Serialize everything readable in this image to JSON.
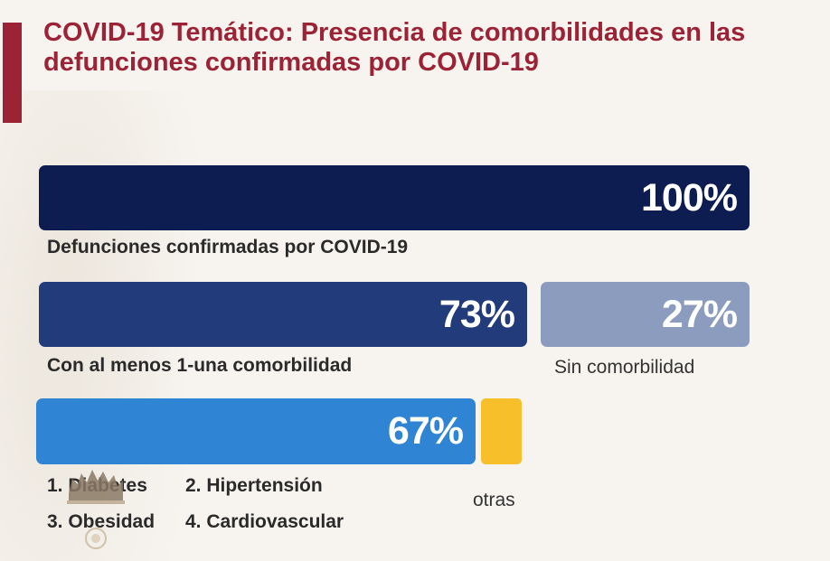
{
  "title": "COVID-19 Temático: Presencia de comorbilidades en las defunciones confirmadas por COVID-19",
  "chart_data": {
    "type": "bar",
    "rows": [
      {
        "segments": [
          {
            "label": "Defunciones confirmadas por COVID-19",
            "value": 100,
            "value_label": "100%",
            "color": "#0d1d52"
          }
        ]
      },
      {
        "segments": [
          {
            "label": "Con al menos 1-una comorbilidad",
            "value": 73,
            "value_label": "73%",
            "color": "#223b7a"
          },
          {
            "label": "Sin comorbilidad",
            "value": 27,
            "value_label": "27%",
            "color": "#8c9cbe"
          }
        ]
      },
      {
        "segments": [
          {
            "label": "",
            "value": 67,
            "value_label": "67%",
            "color": "#2f84d4"
          },
          {
            "label": "otras",
            "value": 6,
            "value_label": "",
            "color": "#f7c02a"
          }
        ]
      }
    ],
    "comorbidities": [
      "1. Diabetes",
      "2. Hipertensión",
      "3. Obesidad",
      "4. Cardiovascular"
    ]
  }
}
